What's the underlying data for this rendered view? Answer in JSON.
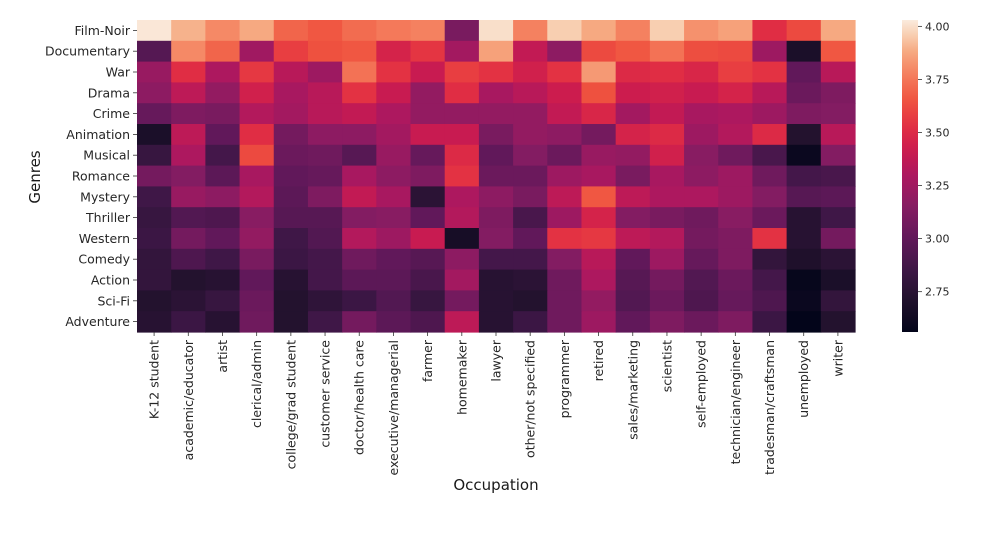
{
  "chart_data": {
    "type": "heatmap",
    "title": "",
    "xlabel": "Occupation",
    "ylabel": "Genres",
    "colormap": "rocket",
    "vmin": 2.56,
    "vmax": 4.03,
    "colorbar": {
      "ticks": [
        4.0,
        3.75,
        3.5,
        3.25,
        3.0,
        2.75
      ],
      "tick_labels": [
        "4.00",
        "3.75",
        "3.50",
        "3.25",
        "3.00",
        "2.75"
      ],
      "placement": "right"
    },
    "x_categories": [
      "K-12 student",
      "academic/educator",
      "artist",
      "clerical/admin",
      "college/grad student",
      "customer service",
      "doctor/health care",
      "executive/managerial",
      "farmer",
      "homemaker",
      "lawyer",
      "other/not specified",
      "programmer",
      "retired",
      "sales/marketing",
      "scientist",
      "self-employed",
      "technician/engineer",
      "tradesman/craftsman",
      "unemployed",
      "writer"
    ],
    "y_categories": [
      "Film-Noir",
      "Documentary",
      "War",
      "Drama",
      "Crime",
      "Animation",
      "Musical",
      "Romance",
      "Mystery",
      "Thriller",
      "Western",
      "Comedy",
      "Action",
      "Sci-Fi",
      "Adventure"
    ],
    "values": [
      [
        4.02,
        3.9,
        3.8,
        3.88,
        3.7,
        3.66,
        3.72,
        3.76,
        3.78,
        3.1,
        4.0,
        3.78,
        3.96,
        3.88,
        3.78,
        3.96,
        3.82,
        3.86,
        3.52,
        3.62,
        3.88
      ],
      [
        2.95,
        3.8,
        3.7,
        3.25,
        3.58,
        3.64,
        3.66,
        3.46,
        3.55,
        3.26,
        3.86,
        3.38,
        3.18,
        3.62,
        3.66,
        3.74,
        3.63,
        3.62,
        3.24,
        2.68,
        3.66
      ],
      [
        3.22,
        3.52,
        3.3,
        3.56,
        3.34,
        3.24,
        3.74,
        3.54,
        3.4,
        3.58,
        3.54,
        3.44,
        3.54,
        3.84,
        3.5,
        3.52,
        3.48,
        3.58,
        3.54,
        3.0,
        3.34
      ],
      [
        3.18,
        3.36,
        3.2,
        3.44,
        3.28,
        3.34,
        3.54,
        3.4,
        3.2,
        3.52,
        3.28,
        3.34,
        3.42,
        3.64,
        3.42,
        3.44,
        3.4,
        3.46,
        3.34,
        3.04,
        3.12
      ],
      [
        3.02,
        3.12,
        3.1,
        3.32,
        3.26,
        3.34,
        3.38,
        3.3,
        3.2,
        3.2,
        3.2,
        3.2,
        3.38,
        3.48,
        3.26,
        3.38,
        3.28,
        3.3,
        3.24,
        3.12,
        3.14
      ],
      [
        2.68,
        3.36,
        3.0,
        3.52,
        3.08,
        3.18,
        3.18,
        3.26,
        3.4,
        3.4,
        3.1,
        3.2,
        3.18,
        3.08,
        3.46,
        3.5,
        3.24,
        3.32,
        3.5,
        2.72,
        3.34
      ],
      [
        2.82,
        3.3,
        2.88,
        3.62,
        3.04,
        3.06,
        2.96,
        3.22,
        3.02,
        3.5,
        3.0,
        3.14,
        3.04,
        3.22,
        3.2,
        3.44,
        3.16,
        3.06,
        2.9,
        2.6,
        3.14
      ],
      [
        3.08,
        3.14,
        2.98,
        3.28,
        3.0,
        3.02,
        3.28,
        3.18,
        3.12,
        3.54,
        3.04,
        3.04,
        3.24,
        3.28,
        3.1,
        3.28,
        3.18,
        3.24,
        3.06,
        2.88,
        2.9
      ],
      [
        2.86,
        3.22,
        3.18,
        3.32,
        2.98,
        3.12,
        3.38,
        3.28,
        2.76,
        3.3,
        3.18,
        3.1,
        3.36,
        3.66,
        3.36,
        3.3,
        3.3,
        3.24,
        3.14,
        2.96,
        2.98
      ],
      [
        2.82,
        2.94,
        2.92,
        3.16,
        2.96,
        2.96,
        3.14,
        3.16,
        3.0,
        3.32,
        3.12,
        2.9,
        3.24,
        3.46,
        3.14,
        3.1,
        3.06,
        3.16,
        3.04,
        2.74,
        2.86
      ],
      [
        2.84,
        3.08,
        3.0,
        3.2,
        2.86,
        2.94,
        3.32,
        3.24,
        3.4,
        2.66,
        3.14,
        3.0,
        3.54,
        3.56,
        3.36,
        3.32,
        3.08,
        3.12,
        3.54,
        2.74,
        3.08
      ],
      [
        2.8,
        2.92,
        2.86,
        3.1,
        2.84,
        2.88,
        3.06,
        3.0,
        2.96,
        3.18,
        2.88,
        2.88,
        3.14,
        3.34,
        3.0,
        3.24,
        3.02,
        3.12,
        2.8,
        2.7,
        2.76
      ],
      [
        2.8,
        2.72,
        2.74,
        3.0,
        2.74,
        2.88,
        2.98,
        2.98,
        2.9,
        3.26,
        2.74,
        2.76,
        3.06,
        3.3,
        2.96,
        3.08,
        2.94,
        3.04,
        2.88,
        2.58,
        2.68
      ],
      [
        2.72,
        2.76,
        2.82,
        3.04,
        2.72,
        2.78,
        2.84,
        2.94,
        2.82,
        3.08,
        2.74,
        2.72,
        3.06,
        3.2,
        2.94,
        3.04,
        2.92,
        3.02,
        2.92,
        2.6,
        2.8
      ],
      [
        2.74,
        2.84,
        2.74,
        3.06,
        2.72,
        2.86,
        3.08,
        2.98,
        2.92,
        3.36,
        2.74,
        2.84,
        3.06,
        3.24,
        3.0,
        3.12,
        3.04,
        3.12,
        2.84,
        2.56,
        2.72
      ]
    ]
  }
}
